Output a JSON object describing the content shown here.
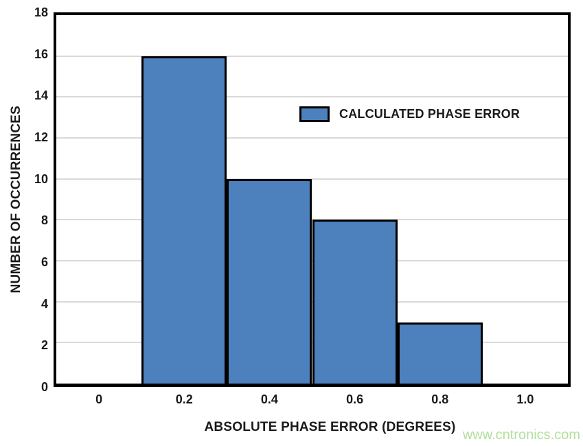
{
  "watermark": "www.cntronics.com",
  "chart_data": {
    "type": "bar",
    "subtype": "histogram",
    "title": "",
    "xlabel": "ABSOLUTE PHASE ERROR (DEGREES)",
    "ylabel": "NUMBER OF OCCURRENCES",
    "legend": [
      {
        "label": "CALCULATED PHASE ERROR",
        "color": "#4d81bd"
      }
    ],
    "legend_position": "inside-top-center",
    "bins": [
      {
        "x_start": 0.1,
        "x_end": 0.3,
        "count": 16
      },
      {
        "x_start": 0.3,
        "x_end": 0.5,
        "count": 10
      },
      {
        "x_start": 0.5,
        "x_end": 0.7,
        "count": 8
      },
      {
        "x_start": 0.7,
        "x_end": 0.9,
        "count": 3
      }
    ],
    "xlim": [
      -0.1,
      1.1
    ],
    "ylim": [
      0,
      18
    ],
    "x_ticks": [
      "0",
      "0.2",
      "0.4",
      "0.6",
      "0.8",
      "1.0"
    ],
    "x_tick_values": [
      0,
      0.2,
      0.4,
      0.6,
      0.8,
      1.0
    ],
    "y_tick_step": 2,
    "grid": "horizontal",
    "gridline_color": "#d9d9d9",
    "bar_color": "#4d81bd",
    "bar_border_color": "#000000",
    "axis_color": "#000000"
  }
}
